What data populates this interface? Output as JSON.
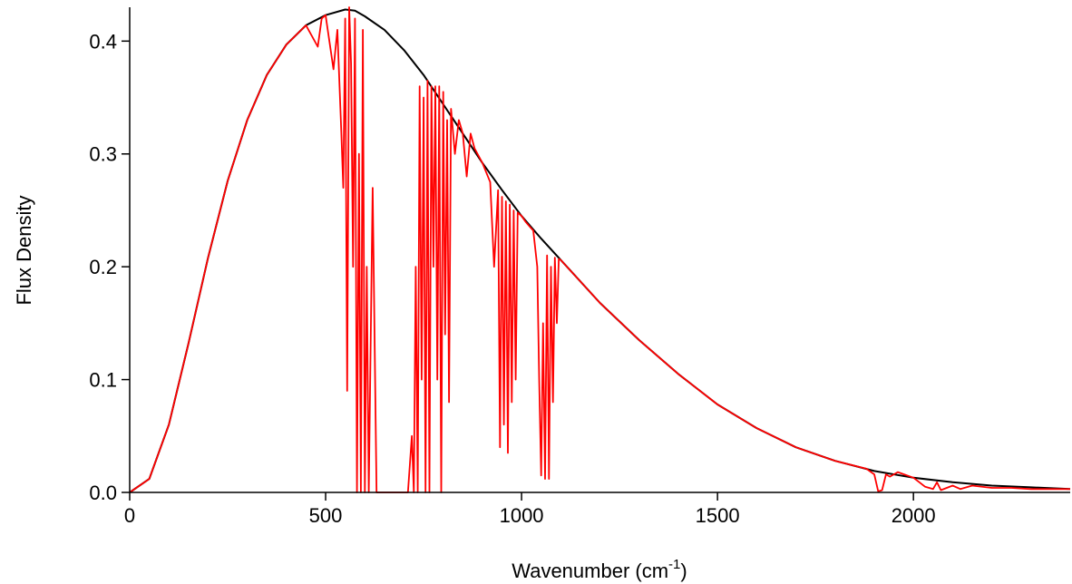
{
  "chart_data": {
    "type": "line",
    "title": "",
    "xlabel": "Wavenumber (cm",
    "xlabel_superscript": "-1",
    "xlabel_suffix": ")",
    "ylabel": "Flux Density",
    "xlim": [
      0,
      2400
    ],
    "ylim": [
      0,
      0.43
    ],
    "x_ticks": [
      0,
      500,
      1000,
      1500,
      2000
    ],
    "x_tick_labels": [
      "0",
      "500",
      "1000",
      "1500",
      "2000"
    ],
    "y_ticks": [
      0.0,
      0.1,
      0.2,
      0.3,
      0.4
    ],
    "y_tick_labels": [
      "0.0",
      "0.1",
      "0.2",
      "0.3",
      "0.4"
    ],
    "grid": false,
    "legend": "none",
    "series": [
      {
        "color": "#000000",
        "x": [
          0,
          50,
          100,
          150,
          200,
          250,
          300,
          350,
          400,
          450,
          500,
          550,
          575,
          600,
          650,
          700,
          750,
          800,
          850,
          900,
          950,
          1000,
          1050,
          1100,
          1150,
          1200,
          1300,
          1400,
          1500,
          1600,
          1700,
          1800,
          1900,
          2000,
          2100,
          2200,
          2300,
          2400
        ],
        "y": [
          0.0,
          0.012,
          0.06,
          0.132,
          0.208,
          0.276,
          0.33,
          0.37,
          0.397,
          0.414,
          0.423,
          0.428,
          0.427,
          0.422,
          0.41,
          0.392,
          0.37,
          0.344,
          0.318,
          0.292,
          0.268,
          0.245,
          0.225,
          0.206,
          0.187,
          0.168,
          0.135,
          0.105,
          0.078,
          0.057,
          0.04,
          0.028,
          0.019,
          0.013,
          0.009,
          0.006,
          0.0045,
          0.003
        ]
      },
      {
        "color": "#ff0000",
        "x": [
          0,
          50,
          100,
          150,
          200,
          250,
          300,
          350,
          400,
          450,
          480,
          490,
          500,
          520,
          530,
          540,
          545,
          550,
          555,
          560,
          565,
          570,
          575,
          580,
          585,
          590,
          595,
          600,
          605,
          610,
          620,
          630,
          640,
          650,
          660,
          670,
          680,
          690,
          700,
          710,
          720,
          725,
          730,
          735,
          740,
          745,
          750,
          755,
          760,
          765,
          770,
          775,
          780,
          785,
          790,
          795,
          800,
          805,
          810,
          815,
          820,
          830,
          840,
          850,
          860,
          870,
          880,
          900,
          920,
          930,
          940,
          945,
          950,
          955,
          960,
          965,
          970,
          975,
          980,
          985,
          990,
          1000,
          1010,
          1020,
          1030,
          1040,
          1045,
          1050,
          1055,
          1060,
          1065,
          1070,
          1075,
          1080,
          1085,
          1090,
          1095,
          1100,
          1150,
          1200,
          1300,
          1400,
          1500,
          1600,
          1700,
          1800,
          1880,
          1900,
          1910,
          1920,
          1930,
          1940,
          1960,
          2000,
          2030,
          2050,
          2060,
          2070,
          2100,
          2120,
          2150,
          2200,
          2250,
          2300,
          2400
        ],
        "y": [
          0.0,
          0.012,
          0.06,
          0.132,
          0.208,
          0.276,
          0.33,
          0.37,
          0.397,
          0.414,
          0.395,
          0.42,
          0.423,
          0.375,
          0.41,
          0.32,
          0.27,
          0.42,
          0.09,
          0.43,
          0.38,
          0.2,
          0.42,
          0.0,
          0.3,
          0.0,
          0.41,
          0.0,
          0.2,
          0.0,
          0.27,
          0.0,
          0.0,
          0.0,
          0.0,
          0.0,
          0.0,
          0.0,
          0.0,
          0.0,
          0.05,
          0.0,
          0.2,
          0.0,
          0.36,
          0.1,
          0.35,
          0.0,
          0.365,
          0.0,
          0.36,
          0.2,
          0.36,
          0.1,
          0.36,
          0.0,
          0.355,
          0.14,
          0.33,
          0.08,
          0.34,
          0.3,
          0.33,
          0.318,
          0.28,
          0.318,
          0.305,
          0.292,
          0.275,
          0.2,
          0.268,
          0.04,
          0.262,
          0.06,
          0.258,
          0.035,
          0.255,
          0.08,
          0.25,
          0.1,
          0.248,
          0.245,
          0.24,
          0.236,
          0.232,
          0.2,
          0.1,
          0.015,
          0.15,
          0.012,
          0.21,
          0.012,
          0.2,
          0.08,
          0.208,
          0.15,
          0.207,
          0.206,
          0.187,
          0.168,
          0.135,
          0.105,
          0.078,
          0.057,
          0.04,
          0.028,
          0.021,
          0.016,
          0.001,
          0.002,
          0.016,
          0.014,
          0.018,
          0.013,
          0.005,
          0.003,
          0.009,
          0.002,
          0.006,
          0.003,
          0.006,
          0.004,
          0.004,
          0.003,
          0.003
        ]
      }
    ]
  }
}
